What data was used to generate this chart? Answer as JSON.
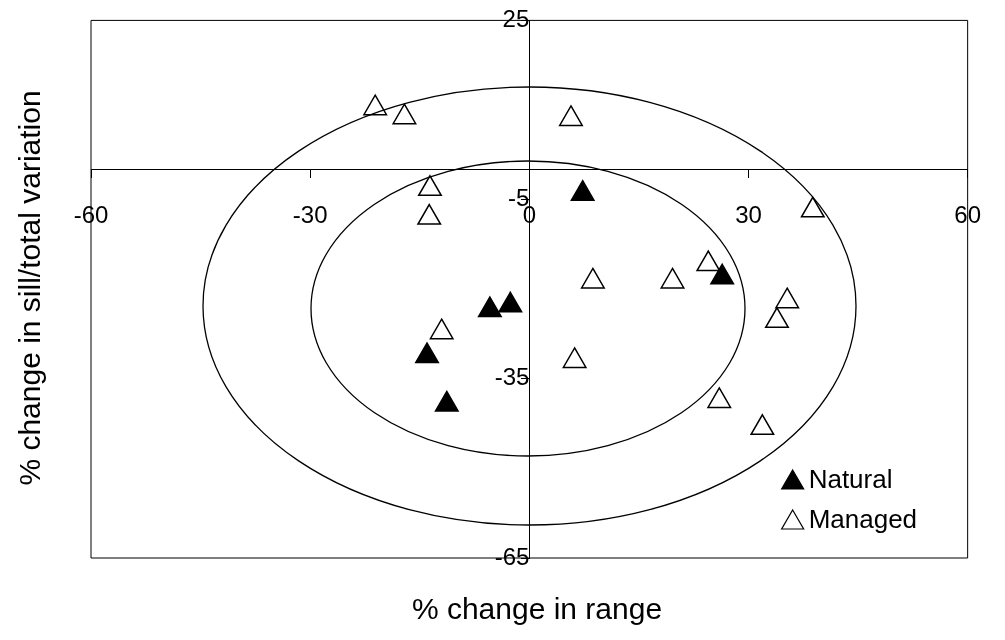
{
  "chart_data": {
    "type": "scatter",
    "xlabel": "% change in range",
    "ylabel": "% change in sill/total variation",
    "xlim": [
      -60,
      60
    ],
    "xticks": [
      -60,
      -30,
      0,
      30,
      60
    ],
    "ylim": [
      -65,
      25
    ],
    "yticks": [
      -65,
      -35,
      -5,
      25
    ],
    "grid": false,
    "legend": "bottom right",
    "marker": "triangle",
    "series": [
      {
        "name": "Natural",
        "color": "#000000",
        "x": [
          7.3,
          26.4,
          -5.4,
          -2.6,
          -14.0,
          -11.3
        ],
        "values": [
          -4.0,
          -18.0,
          -23.5,
          -22.7,
          -31.2,
          -39.3
        ]
      },
      {
        "name": "Managed",
        "color": "#ffffff",
        "x": [
          -21.1,
          -17.1,
          5.7,
          -13.6,
          -13.7,
          38.8,
          8.7,
          19.6,
          24.5,
          35.3,
          33.9,
          -12.0,
          6.2,
          26.0,
          31.9
        ],
        "values": [
          10.3,
          8.8,
          8.5,
          -3.2,
          -8.0,
          -6.8,
          -18.7,
          -18.7,
          -15.8,
          -22.0,
          -25.3,
          -27.2,
          -32.0,
          -38.7,
          -43.2
        ]
      }
    ]
  }
}
